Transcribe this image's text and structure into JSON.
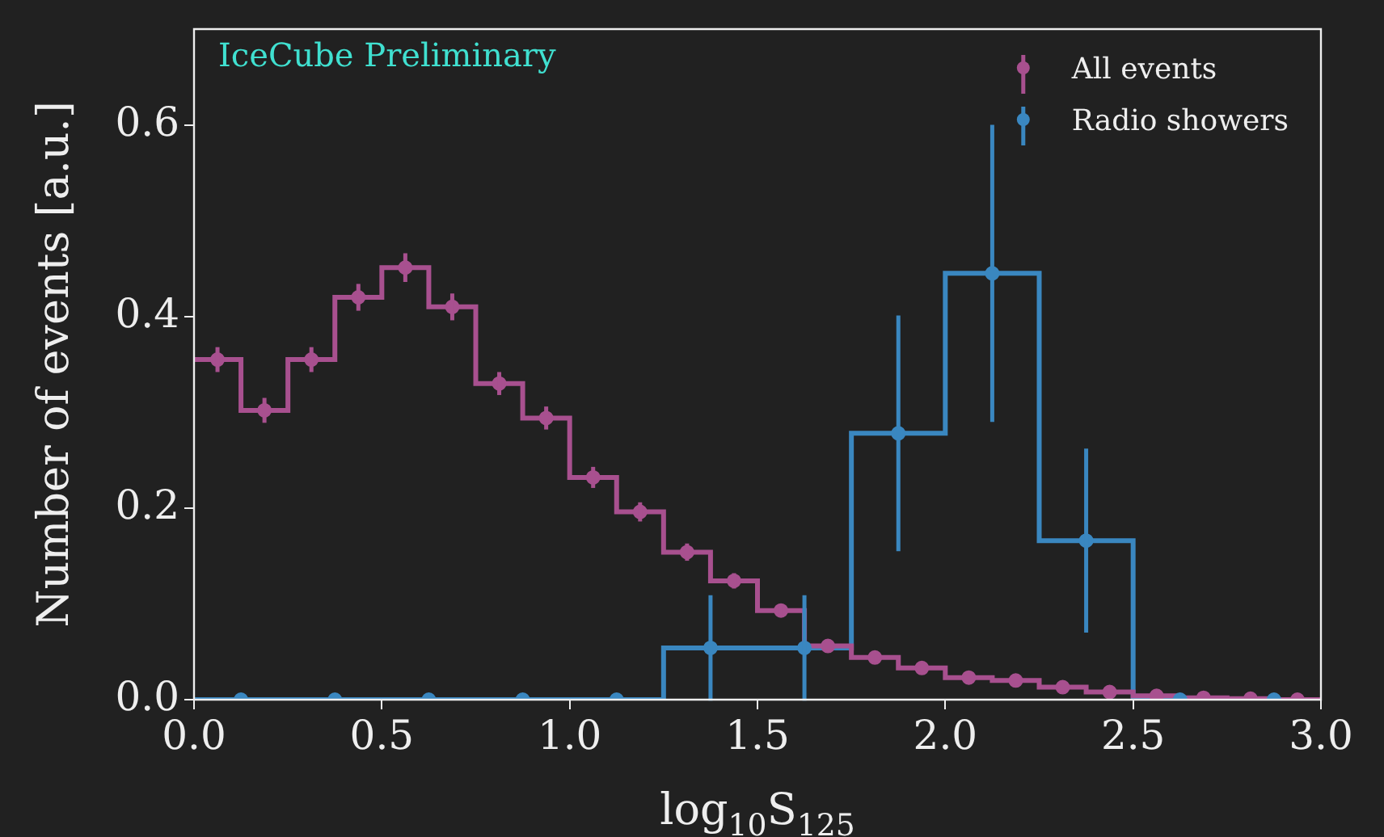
{
  "chart_data": {
    "type": "histogram",
    "xlabel": "log$_{10}$S$_{125}$",
    "ylabel": "Number of events [a.u.]",
    "annotations": [
      "IceCube Preliminary"
    ],
    "bins": [
      0,
      0.125,
      0.25,
      0.375,
      0.5,
      0.625,
      0.75,
      0.875,
      1.0,
      1.125,
      1.25,
      1.375,
      1.5,
      1.625,
      1.75,
      1.875,
      2.0,
      2.125,
      2.25,
      2.375,
      2.5,
      2.625,
      2.75,
      2.875,
      3.0
    ],
    "series": [
      {
        "color": "#a8508f",
        "values": [
          0.355,
          0.302,
          0.355,
          0.42,
          0.451,
          0.41,
          0.33,
          0.294,
          0.232,
          0.196,
          0.154,
          0.124,
          0.093,
          0.056,
          0.044,
          0.033,
          0.023,
          0.02,
          0.013,
          0.008,
          0.004,
          0.002,
          0.001,
          0
        ]
      },
      {
        "color": "#3a87c0",
        "bins": [
          0,
          0.25,
          0.5,
          0.75,
          1.0,
          1.25,
          1.5,
          1.75,
          2.0,
          2.25,
          2.5,
          2.75,
          3.0
        ],
        "values": [
          0,
          0,
          0,
          0,
          0,
          0.054,
          0.054,
          0.278,
          0.445,
          0.166,
          0,
          0
        ]
      },
      {
        "type": "scatter",
        "name": "All events",
        "color": "#a8508f",
        "x": [
          0.0625,
          0.1875,
          0.3125,
          0.4375,
          0.5625,
          0.6875,
          0.8125,
          0.9375,
          1.0625,
          1.1875,
          1.3125,
          1.4375,
          1.5625,
          1.6875,
          1.8125,
          1.9375,
          2.0625,
          2.1875,
          2.3125,
          2.4375,
          2.5625,
          2.6875,
          2.8125,
          2.9375
        ],
        "values": [
          0.355,
          0.302,
          0.355,
          0.42,
          0.451,
          0.41,
          0.33,
          0.294,
          0.232,
          0.196,
          0.154,
          0.124,
          0.093,
          0.056,
          0.044,
          0.033,
          0.023,
          0.02,
          0.013,
          0.008,
          0.004,
          0.002,
          0.001,
          0
        ],
        "errors": [
          0.013,
          0.013,
          0.013,
          0.014,
          0.015,
          0.014,
          0.012,
          0.012,
          0.011,
          0.01,
          0.009,
          0.008,
          0.007,
          0.005,
          null,
          null,
          null,
          null,
          null,
          null,
          null,
          null,
          null,
          null
        ]
      },
      {
        "type": "scatter",
        "name": "Radio showers",
        "color": "#3a87c0",
        "x": [
          0.125,
          0.375,
          0.625,
          0.875,
          1.125,
          1.375,
          1.625,
          1.875,
          2.125,
          2.375,
          2.625,
          2.875
        ],
        "values": [
          0,
          0,
          0,
          0,
          0,
          0.054,
          0.054,
          0.278,
          0.445,
          0.166,
          0,
          0
        ],
        "errors": [
          null,
          null,
          null,
          null,
          null,
          0.055,
          0.055,
          0.123,
          0.155,
          0.096,
          null,
          null
        ]
      }
    ],
    "xlim": [
      0,
      3.0
    ],
    "xticks": [
      {
        "value": 0,
        "label": "0.0"
      },
      0.5,
      {
        "value": 1,
        "label": "1.0"
      },
      1.5,
      {
        "value": 2,
        "label": "2.0"
      },
      2.5,
      {
        "value": 3,
        "label": "3.0"
      }
    ],
    "ylim": [
      0,
      0.7
    ],
    "yticks": [
      {
        "value": 0,
        "label": "0.0"
      },
      0.2,
      0.4,
      0.6
    ],
    "legend": "top right",
    "marker": "circle",
    "grid": false
  }
}
